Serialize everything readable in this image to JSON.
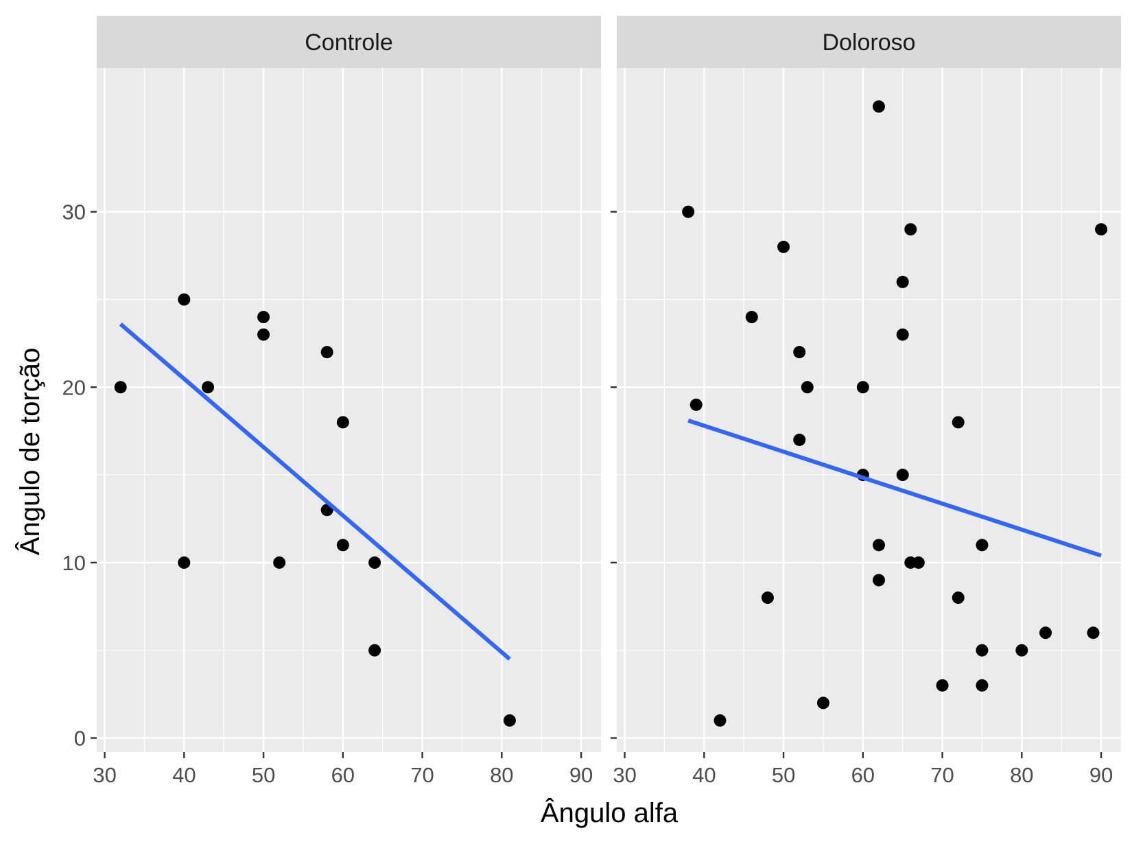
{
  "chart_data": {
    "type": "scatter",
    "xlabel": "Ângulo alfa",
    "ylabel": "Ângulo de torção",
    "xlim": [
      29,
      92.5
    ],
    "ylim": [
      -0.8,
      38.2
    ],
    "x_ticks": [
      30,
      40,
      50,
      60,
      70,
      80,
      90
    ],
    "y_ticks": [
      0,
      10,
      20,
      30
    ],
    "grid": true,
    "colors": {
      "panel_bg": "#EBEBEB",
      "strip_bg": "#D9D9D9",
      "grid": "#FFFFFF",
      "points": "#000000",
      "line": "#3366FF"
    },
    "panels": [
      {
        "name": "Controle",
        "points": [
          [
            32,
            20
          ],
          [
            40,
            25
          ],
          [
            40,
            10
          ],
          [
            43,
            20
          ],
          [
            50,
            24
          ],
          [
            50,
            23
          ],
          [
            52,
            10
          ],
          [
            58,
            22
          ],
          [
            58,
            13
          ],
          [
            60,
            18
          ],
          [
            60,
            11
          ],
          [
            64,
            10
          ],
          [
            64,
            5
          ],
          [
            81,
            1
          ]
        ],
        "fit_line": [
          [
            32,
            23.6
          ],
          [
            81,
            4.5
          ]
        ]
      },
      {
        "name": "Doloroso",
        "points": [
          [
            38,
            30
          ],
          [
            39,
            19
          ],
          [
            42,
            1
          ],
          [
            46,
            24
          ],
          [
            48,
            8
          ],
          [
            50,
            28
          ],
          [
            52,
            22
          ],
          [
            52,
            17
          ],
          [
            53,
            20
          ],
          [
            55,
            2
          ],
          [
            60,
            20
          ],
          [
            60,
            15
          ],
          [
            62,
            36
          ],
          [
            62,
            11
          ],
          [
            62,
            9
          ],
          [
            65,
            26
          ],
          [
            65,
            23
          ],
          [
            65,
            15
          ],
          [
            66,
            29
          ],
          [
            66,
            10
          ],
          [
            67,
            10
          ],
          [
            70,
            3
          ],
          [
            72,
            18
          ],
          [
            72,
            8
          ],
          [
            75,
            11
          ],
          [
            75,
            5
          ],
          [
            75,
            3
          ],
          [
            80,
            5
          ],
          [
            83,
            6
          ],
          [
            89,
            6
          ],
          [
            90,
            29
          ]
        ],
        "fit_line": [
          [
            38,
            18.1
          ],
          [
            90,
            10.4
          ]
        ]
      }
    ]
  }
}
